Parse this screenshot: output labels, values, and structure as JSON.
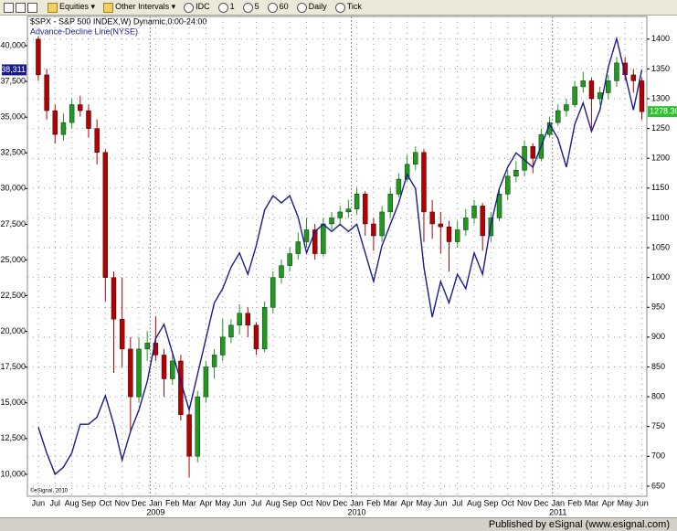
{
  "toolbar": {
    "items": [
      "Equities",
      "Other Intervals",
      "IDC",
      "1",
      "5",
      "60",
      "Daily",
      "Tick"
    ]
  },
  "chart_data": {
    "type": "candlestick",
    "title": "$SPX - S&P 500 INDEX,W) Dynamic,0:00-24:00",
    "watermark": "©eSignal, 2010",
    "x": [
      0,
      0.5,
      1,
      1.5,
      2,
      2.5,
      3,
      3.5,
      4,
      4.5,
      5,
      5.5,
      6,
      6.5,
      7,
      7.5,
      8,
      8.5,
      9,
      9.5,
      10,
      10.5,
      11,
      11.5,
      12,
      12.5,
      13,
      13.5,
      14,
      14.5,
      15,
      15.5,
      16,
      16.5,
      17,
      17.5,
      18,
      18.5,
      19,
      19.5,
      20,
      20.5,
      21,
      21.5,
      22,
      22.5,
      23,
      23.5,
      24,
      24.5,
      25,
      25.5,
      26,
      26.5,
      27,
      27.5,
      28,
      28.5,
      29,
      29.5,
      30,
      30.5,
      31,
      31.5,
      32,
      32.5,
      33,
      33.5,
      34,
      34.5,
      35,
      35.5,
      36
    ],
    "xlim": [
      -0.65,
      36.3
    ],
    "xticks": [
      {
        "value": 0,
        "label": "Jun"
      },
      {
        "value": 1,
        "label": "Jul"
      },
      {
        "value": 2,
        "label": "Aug"
      },
      {
        "value": 3,
        "label": "Sep"
      },
      {
        "value": 4,
        "label": "Oct"
      },
      {
        "value": 5,
        "label": "Nov"
      },
      {
        "value": 6,
        "label": "Dec"
      },
      {
        "value": 7,
        "label": "Jan"
      },
      {
        "value": 8,
        "label": "Feb"
      },
      {
        "value": 9,
        "label": "Mar"
      },
      {
        "value": 10,
        "label": "Apr"
      },
      {
        "value": 11,
        "label": "May"
      },
      {
        "value": 12,
        "label": "Jun"
      },
      {
        "value": 13,
        "label": "Jul"
      },
      {
        "value": 14,
        "label": "Aug"
      },
      {
        "value": 15,
        "label": "Sep"
      },
      {
        "value": 16,
        "label": "Oct"
      },
      {
        "value": 17,
        "label": "Nov"
      },
      {
        "value": 18,
        "label": "Dec"
      },
      {
        "value": 19,
        "label": "Jan"
      },
      {
        "value": 20,
        "label": "Feb"
      },
      {
        "value": 21,
        "label": "Mar"
      },
      {
        "value": 22,
        "label": "Apr"
      },
      {
        "value": 23,
        "label": "May"
      },
      {
        "value": 24,
        "label": "Jun"
      },
      {
        "value": 25,
        "label": "Jul"
      },
      {
        "value": 26,
        "label": "Aug"
      },
      {
        "value": 27,
        "label": "Sep"
      },
      {
        "value": 28,
        "label": "Oct"
      },
      {
        "value": 29,
        "label": "Nov"
      },
      {
        "value": 30,
        "label": "Dec"
      },
      {
        "value": 31,
        "label": "Jan"
      },
      {
        "value": 32,
        "label": "Feb"
      },
      {
        "value": 33,
        "label": "Mar"
      },
      {
        "value": 34,
        "label": "Apr"
      },
      {
        "value": 35,
        "label": "May"
      },
      {
        "value": 36,
        "label": "Jun"
      }
    ],
    "year_ticks": [
      {
        "value": 7,
        "label": "2009"
      },
      {
        "value": 19,
        "label": "2010"
      },
      {
        "value": 31,
        "label": "2011"
      }
    ],
    "ylim": [
      8460,
      42050
    ],
    "yticks": [
      {
        "value": 10000,
        "label": "10,000"
      },
      {
        "value": 12500,
        "label": "12,500"
      },
      {
        "value": 15000,
        "label": "15,000"
      },
      {
        "value": 17500,
        "label": "17,500"
      },
      {
        "value": 20000,
        "label": "20,000"
      },
      {
        "value": 22500,
        "label": "22,500"
      },
      {
        "value": 25000,
        "label": "25,000"
      },
      {
        "value": 27500,
        "label": "27,500"
      },
      {
        "value": 30000,
        "label": "30,000"
      },
      {
        "value": 32500,
        "label": "32,500"
      },
      {
        "value": 35000,
        "label": "35,000"
      },
      {
        "value": 37500,
        "label": "37,500"
      },
      {
        "value": 40000,
        "label": "40,000"
      }
    ],
    "y2lim": [
      633,
      1438
    ],
    "y2ticks": [
      650,
      700,
      750,
      800,
      850,
      900,
      950,
      1000,
      1050,
      1100,
      1150,
      1200,
      1250,
      1300,
      1350,
      1400
    ],
    "grid": true,
    "series": [
      {
        "type": "candlestick",
        "axis": "y2",
        "up_color": "#1e9a1e",
        "down_color": "#b40000",
        "label_color": "#2fbf2f",
        "last_label": "1278.30",
        "open": [
          1400,
          1340,
          1280,
          1240,
          1260,
          1290,
          1280,
          1250,
          1210,
          1000,
          930,
          880,
          800,
          880,
          890,
          870,
          830,
          860,
          770,
          700,
          800,
          850,
          870,
          900,
          920,
          940,
          920,
          880,
          950,
          1000,
          1020,
          1040,
          1060,
          1080,
          1040,
          1090,
          1100,
          1110,
          1115,
          1140,
          1090,
          1070,
          1110,
          1140,
          1165,
          1190,
          1210,
          1110,
          1090,
          1085,
          1060,
          1080,
          1100,
          1120,
          1070,
          1100,
          1140,
          1170,
          1180,
          1220,
          1200,
          1240,
          1260,
          1280,
          1290,
          1320,
          1330,
          1300,
          1310,
          1330,
          1360,
          1340,
          1330
        ],
        "high": [
          1405,
          1350,
          1290,
          1275,
          1300,
          1305,
          1290,
          1265,
          1215,
          1010,
          1000,
          900,
          900,
          910,
          935,
          880,
          870,
          870,
          780,
          810,
          860,
          880,
          930,
          930,
          955,
          950,
          925,
          960,
          1010,
          1030,
          1050,
          1075,
          1100,
          1090,
          1100,
          1110,
          1120,
          1130,
          1150,
          1145,
          1100,
          1120,
          1150,
          1175,
          1205,
          1220,
          1215,
          1130,
          1110,
          1095,
          1095,
          1115,
          1130,
          1125,
          1110,
          1150,
          1180,
          1195,
          1230,
          1225,
          1250,
          1270,
          1290,
          1300,
          1330,
          1345,
          1335,
          1320,
          1340,
          1370,
          1370,
          1350,
          1335
        ],
        "low": [
          1330,
          1265,
          1225,
          1230,
          1250,
          1270,
          1235,
          1190,
          960,
          840,
          850,
          740,
          790,
          860,
          860,
          800,
          820,
          760,
          665,
          690,
          790,
          830,
          860,
          890,
          905,
          900,
          870,
          875,
          940,
          990,
          1010,
          1030,
          1050,
          1030,
          1035,
          1080,
          1090,
          1100,
          1105,
          1070,
          1045,
          1060,
          1100,
          1135,
          1160,
          1180,
          1060,
          1065,
          1040,
          1010,
          1050,
          1070,
          1090,
          1045,
          1060,
          1095,
          1130,
          1160,
          1170,
          1175,
          1195,
          1235,
          1255,
          1270,
          1285,
          1310,
          1250,
          1290,
          1300,
          1320,
          1330,
          1310,
          1265
        ],
        "close": [
          1340,
          1280,
          1240,
          1260,
          1290,
          1280,
          1250,
          1210,
          1000,
          930,
          880,
          800,
          880,
          890,
          870,
          830,
          860,
          770,
          700,
          800,
          850,
          870,
          900,
          920,
          940,
          920,
          880,
          950,
          1000,
          1020,
          1040,
          1060,
          1080,
          1040,
          1090,
          1100,
          1110,
          1115,
          1140,
          1090,
          1070,
          1110,
          1140,
          1165,
          1190,
          1210,
          1110,
          1090,
          1085,
          1060,
          1080,
          1100,
          1120,
          1070,
          1100,
          1140,
          1170,
          1180,
          1220,
          1200,
          1240,
          1260,
          1280,
          1290,
          1320,
          1330,
          1300,
          1310,
          1330,
          1360,
          1340,
          1330,
          1278.3
        ]
      },
      {
        "type": "line",
        "name": "Advance-Decline Line(NYSE)",
        "color": "#1a1a8c",
        "last_label": "38,311",
        "values": [
          13300,
          11500,
          10000,
          10500,
          11500,
          13500,
          13500,
          14000,
          15500,
          13500,
          11000,
          13000,
          14500,
          16500,
          19500,
          20500,
          18500,
          16500,
          14500,
          17000,
          19500,
          22000,
          23000,
          24500,
          25500,
          24000,
          26000,
          28500,
          29500,
          29000,
          29500,
          28000,
          25500,
          27000,
          27500,
          27000,
          27500,
          27000,
          27500,
          25500,
          23500,
          26000,
          27500,
          29000,
          31000,
          30000,
          24500,
          21000,
          23500,
          22000,
          24000,
          23000,
          25500,
          24000,
          27500,
          30000,
          31500,
          32500,
          32000,
          31500,
          33000,
          34500,
          33500,
          31500,
          34500,
          36000,
          34000,
          35500,
          38500,
          40500,
          38000,
          35500,
          38311
        ]
      }
    ]
  },
  "footer": "Published by eSignal (www.esignal.com)"
}
